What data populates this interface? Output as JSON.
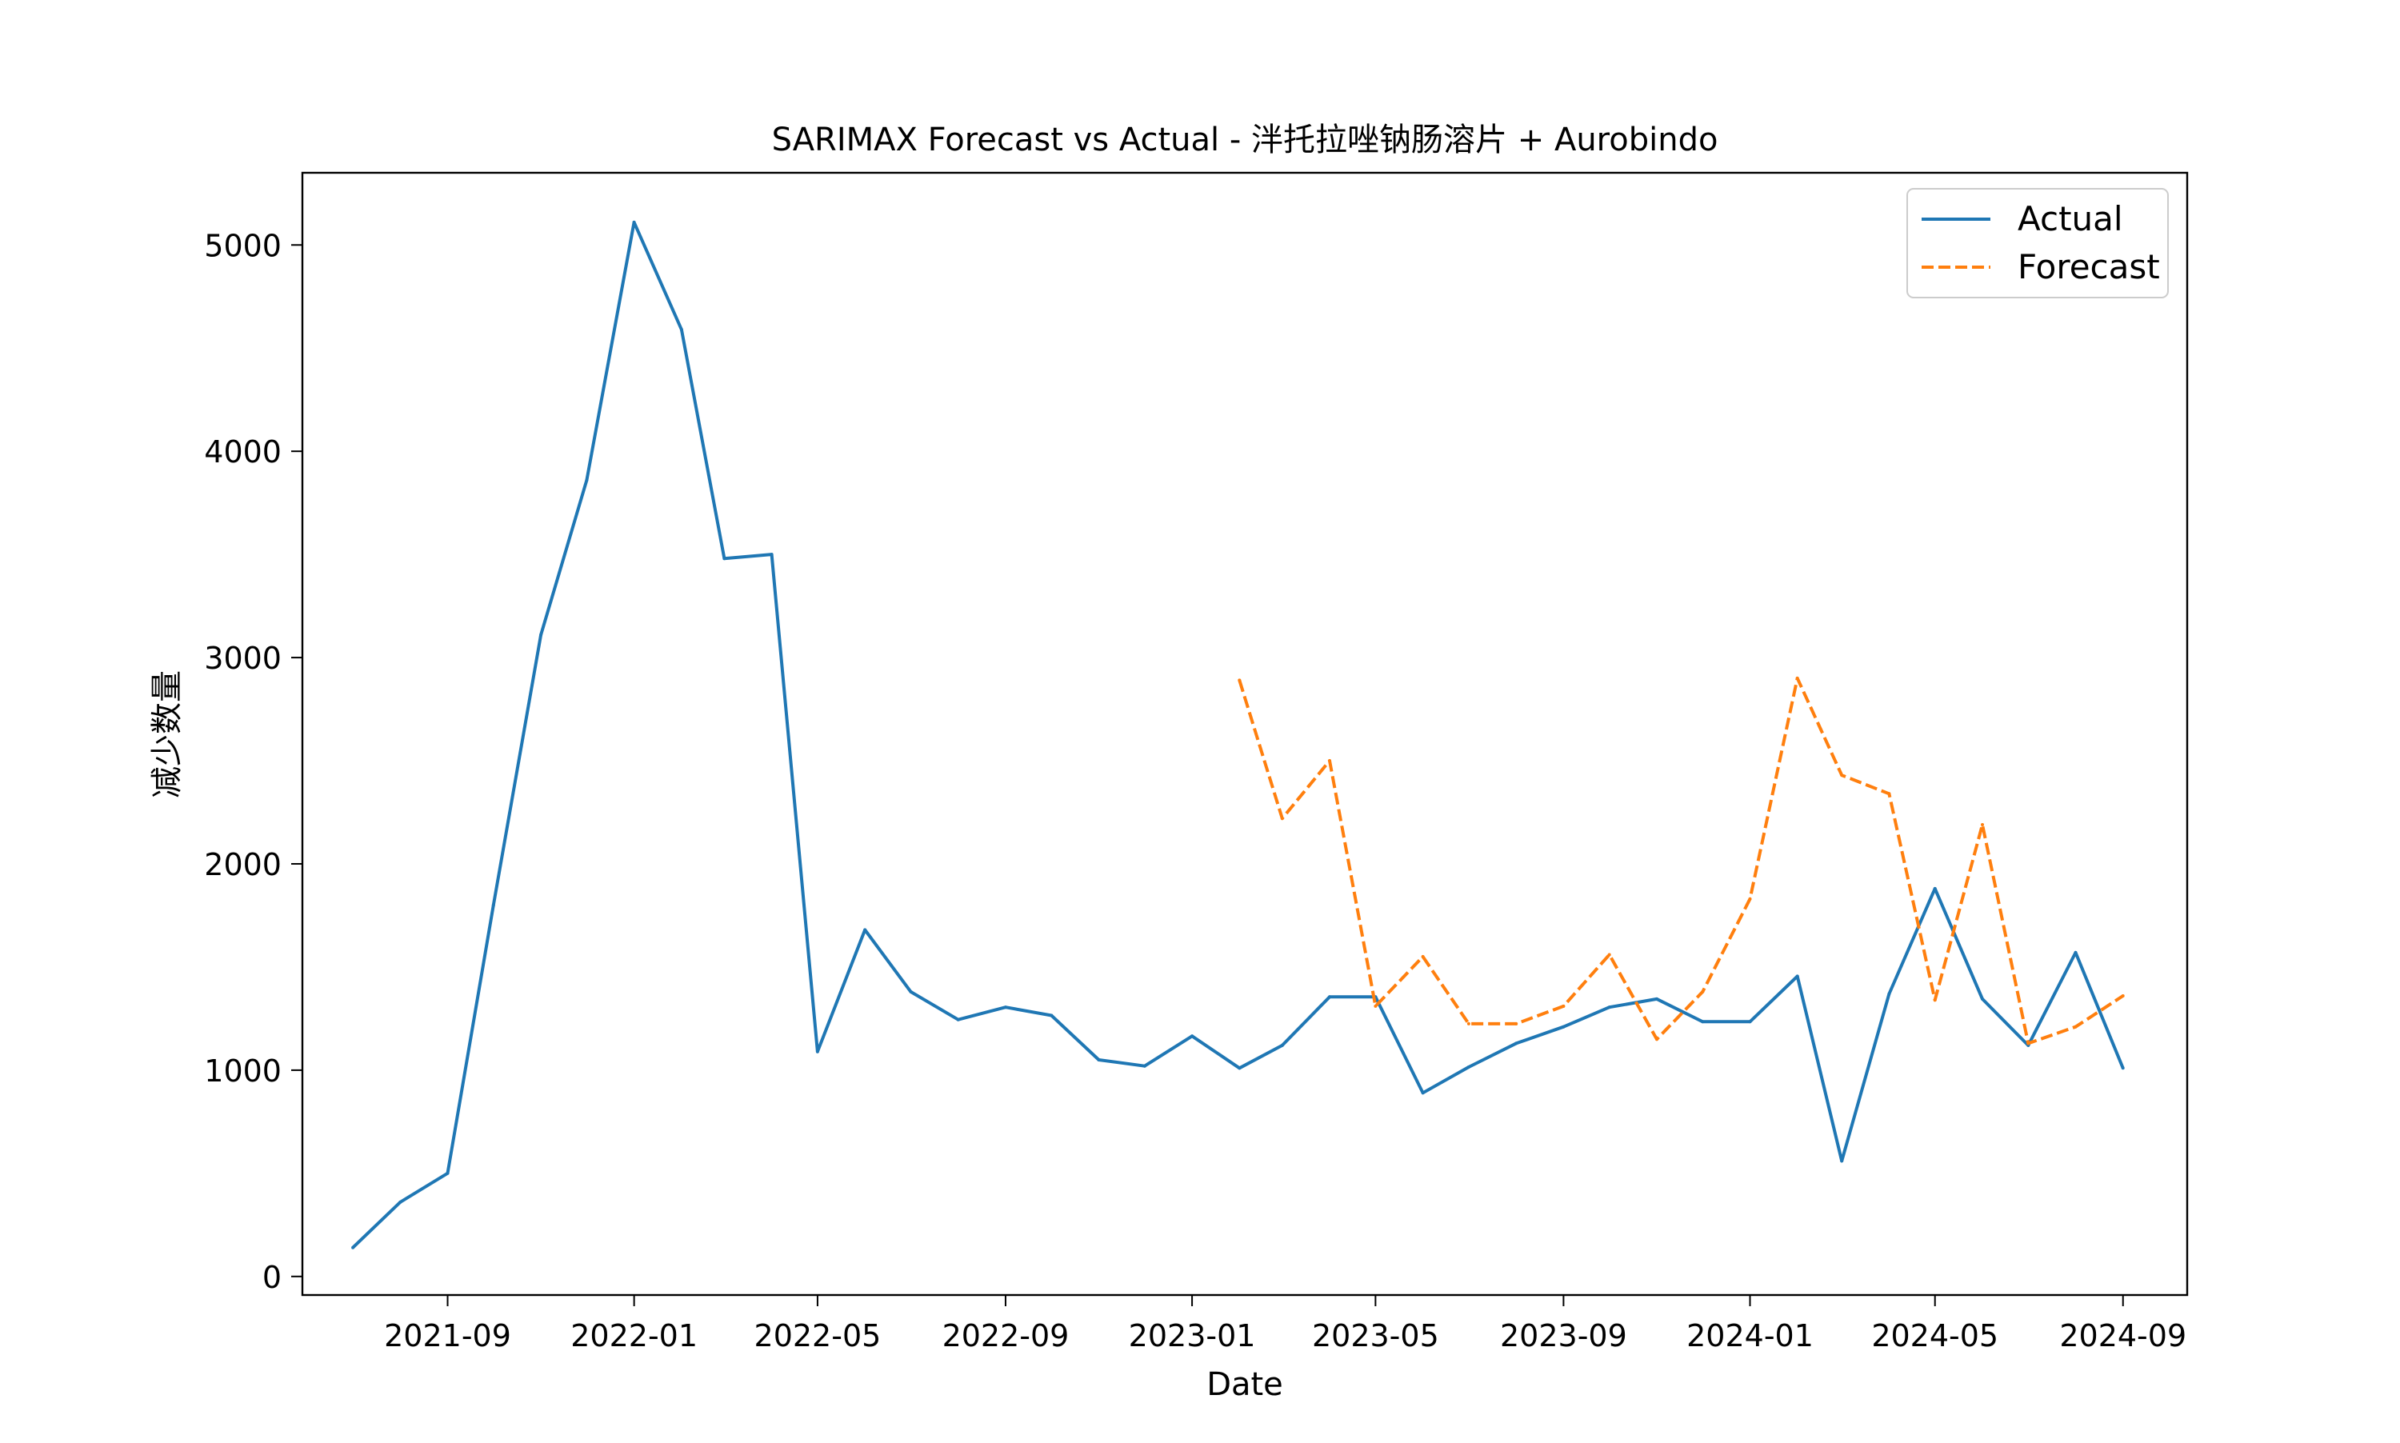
{
  "chart_data": {
    "type": "line",
    "title": "SARIMAX Forecast vs Actual - 泮托拉唑钠肠溶片 + Aurobindo",
    "xlabel": "Date",
    "ylabel": "减少数量",
    "xlim": [
      "2021-05-29",
      "2024-10-13"
    ],
    "ylim": [
      -90,
      5350
    ],
    "x_ticks": [
      "2021-09",
      "2022-01",
      "2022-05",
      "2022-09",
      "2023-01",
      "2023-05",
      "2023-09",
      "2024-01",
      "2024-05",
      "2024-09"
    ],
    "y_ticks": [
      0,
      1000,
      2000,
      3000,
      4000,
      5000
    ],
    "grid": false,
    "legend_position": "upper right",
    "colors": {
      "actual": "#1f77b4",
      "forecast": "#ff7f0e"
    },
    "series": [
      {
        "name": "Actual",
        "style": "solid",
        "x": [
          "2021-07-01",
          "2021-08-01",
          "2021-09-01",
          "2021-10-01",
          "2021-11-01",
          "2021-12-01",
          "2022-01-01",
          "2022-02-01",
          "2022-03-01",
          "2022-04-01",
          "2022-05-01",
          "2022-06-01",
          "2022-07-01",
          "2022-08-01",
          "2022-09-01",
          "2022-10-01",
          "2022-11-01",
          "2022-12-01",
          "2023-01-01",
          "2023-02-01",
          "2023-03-01",
          "2023-04-01",
          "2023-05-01",
          "2023-06-01",
          "2023-07-01",
          "2023-08-01",
          "2023-09-01",
          "2023-10-01",
          "2023-11-01",
          "2023-12-01",
          "2024-01-01",
          "2024-02-01",
          "2024-03-01",
          "2024-04-01",
          "2024-05-01",
          "2024-06-01",
          "2024-07-01",
          "2024-08-01",
          "2024-09-01"
        ],
        "values": [
          140,
          360,
          500,
          1800,
          3110,
          3860,
          5110,
          4590,
          3480,
          3500,
          1090,
          1680,
          1380,
          1245,
          1305,
          1265,
          1050,
          1020,
          1165,
          1010,
          1120,
          1355,
          1355,
          890,
          1015,
          1130,
          1210,
          1305,
          1345,
          1235,
          1235,
          1455,
          560,
          1370,
          1880,
          1345,
          1120,
          1570,
          1010
        ]
      },
      {
        "name": "Forecast",
        "style": "dashed",
        "x": [
          "2023-02-01",
          "2023-03-01",
          "2023-04-01",
          "2023-05-01",
          "2023-06-01",
          "2023-07-01",
          "2023-08-01",
          "2023-09-01",
          "2023-10-01",
          "2023-11-01",
          "2023-12-01",
          "2024-01-01",
          "2024-02-01",
          "2024-03-01",
          "2024-04-01",
          "2024-05-01",
          "2024-06-01",
          "2024-07-01",
          "2024-08-01",
          "2024-09-01"
        ],
        "values": [
          2890,
          2220,
          2500,
          1310,
          1550,
          1225,
          1225,
          1310,
          1560,
          1150,
          1380,
          1830,
          2900,
          2430,
          2340,
          1340,
          2190,
          1130,
          1210,
          1360
        ]
      }
    ]
  }
}
